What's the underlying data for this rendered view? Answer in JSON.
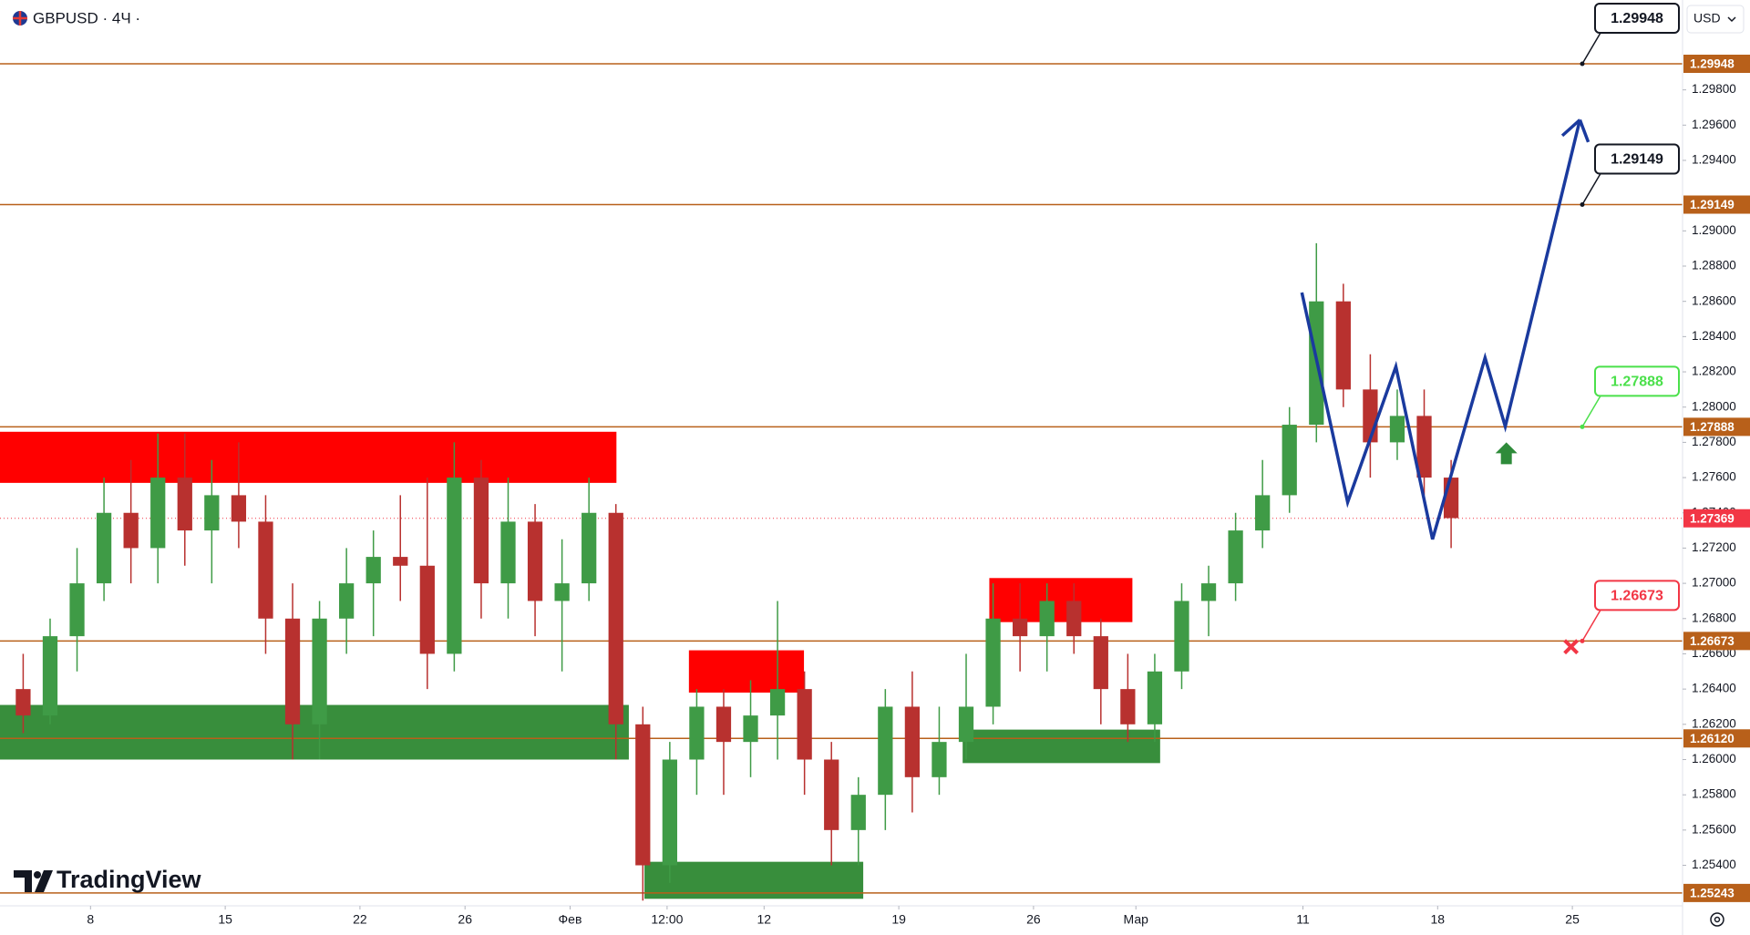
{
  "header": {
    "symbol": "GBPUSD · 4Ч ·",
    "currency": "USD",
    "brand": "TradingView"
  },
  "chart_data": {
    "type": "candlestick",
    "up_color": "#3f9b46",
    "down_color": "#b8312f",
    "xlim": [
      -3.36,
      59.09
    ],
    "ylim": [
      1.2517,
      1.3031
    ],
    "xticks": [
      {
        "value": 0,
        "label": "8"
      },
      {
        "value": 5,
        "label": "15"
      },
      {
        "value": 10,
        "label": "22"
      },
      {
        "value": 13.9,
        "label": "26"
      },
      {
        "value": 17.8,
        "label": "Фев"
      },
      {
        "value": 21.4,
        "label": "12:00"
      },
      {
        "value": 25,
        "label": "12"
      },
      {
        "value": 30,
        "label": "19"
      },
      {
        "value": 35,
        "label": "26"
      },
      {
        "value": 38.8,
        "label": "Мар"
      },
      {
        "value": 45,
        "label": "11"
      },
      {
        "value": 50,
        "label": "18"
      },
      {
        "value": 55,
        "label": "25"
      }
    ],
    "yticks": [
      {
        "value": 1.254,
        "label": "1.25400"
      },
      {
        "value": 1.256,
        "label": "1.25600"
      },
      {
        "value": 1.258,
        "label": "1.25800"
      },
      {
        "value": 1.26,
        "label": "1.26000"
      },
      {
        "value": 1.262,
        "label": "1.26200"
      },
      {
        "value": 1.264,
        "label": "1.26400"
      },
      {
        "value": 1.266,
        "label": "1.26600"
      },
      {
        "value": 1.268,
        "label": "1.26800"
      },
      {
        "value": 1.27,
        "label": "1.27000"
      },
      {
        "value": 1.272,
        "label": "1.27200"
      },
      {
        "value": 1.274,
        "label": "1.27400"
      },
      {
        "value": 1.276,
        "label": "1.27600"
      },
      {
        "value": 1.278,
        "label": "1.27800"
      },
      {
        "value": 1.28,
        "label": "1.28000"
      },
      {
        "value": 1.282,
        "label": "1.28200"
      },
      {
        "value": 1.284,
        "label": "1.28400"
      },
      {
        "value": 1.286,
        "label": "1.28600"
      },
      {
        "value": 1.288,
        "label": "1.28800"
      },
      {
        "value": 1.29,
        "label": "1.29000"
      },
      {
        "value": 1.294,
        "label": "1.29400"
      },
      {
        "value": 1.296,
        "label": "1.29600"
      },
      {
        "value": 1.298,
        "label": "1.29800"
      }
    ],
    "x": [
      -2.5,
      -1.5,
      -0.5,
      0.5,
      1.5,
      2.5,
      3.5,
      4.5,
      5.5,
      6.5,
      7.5,
      8.5,
      9.5,
      10.5,
      11.5,
      12.5,
      13.5,
      14.5,
      15.5,
      16.5,
      17.5,
      18.5,
      19.5,
      20.5,
      21.5,
      22.5,
      23.5,
      24.5,
      25.5,
      26.5,
      27.5,
      28.5,
      29.5,
      30.5,
      31.5,
      32.5,
      33.5,
      34.5,
      35.5,
      36.5,
      37.5,
      38.5,
      39.5,
      40.5,
      41.5,
      42.5,
      43.5,
      44.5,
      45.5,
      46.5,
      47.5,
      48.5,
      49.5,
      50.5
    ],
    "open": [
      1.264,
      1.2625,
      1.267,
      1.27,
      1.274,
      1.272,
      1.276,
      1.273,
      1.275,
      1.2735,
      1.268,
      1.262,
      1.268,
      1.27,
      1.2715,
      1.271,
      1.266,
      1.276,
      1.27,
      1.2735,
      1.269,
      1.27,
      1.274,
      1.262,
      1.254,
      1.26,
      1.263,
      1.261,
      1.2625,
      1.264,
      1.26,
      1.256,
      1.258,
      1.263,
      1.259,
      1.261,
      1.263,
      1.268,
      1.267,
      1.269,
      1.267,
      1.264,
      1.262,
      1.265,
      1.269,
      1.27,
      1.273,
      1.275,
      1.279,
      1.286,
      1.281,
      1.278,
      1.2795,
      1.276
    ],
    "high": [
      1.266,
      1.268,
      1.272,
      1.276,
      1.277,
      1.2785,
      1.2785,
      1.277,
      1.278,
      1.275,
      1.27,
      1.269,
      1.272,
      1.273,
      1.275,
      1.276,
      1.278,
      1.277,
      1.276,
      1.2745,
      1.2725,
      1.276,
      1.2745,
      1.263,
      1.261,
      1.264,
      1.264,
      1.2645,
      1.269,
      1.265,
      1.261,
      1.259,
      1.264,
      1.265,
      1.263,
      1.266,
      1.27,
      1.27,
      1.27,
      1.27,
      1.268,
      1.266,
      1.266,
      1.27,
      1.271,
      1.274,
      1.277,
      1.28,
      1.2893,
      1.287,
      1.283,
      1.281,
      1.281,
      1.277
    ],
    "low": [
      1.2615,
      1.262,
      1.265,
      1.269,
      1.27,
      1.27,
      1.271,
      1.27,
      1.272,
      1.266,
      1.26,
      1.26,
      1.266,
      1.267,
      1.269,
      1.264,
      1.265,
      1.268,
      1.268,
      1.267,
      1.265,
      1.269,
      1.26,
      1.252,
      1.253,
      1.258,
      1.258,
      1.259,
      1.26,
      1.258,
      1.254,
      1.254,
      1.256,
      1.257,
      1.258,
      1.26,
      1.262,
      1.265,
      1.265,
      1.266,
      1.262,
      1.261,
      1.261,
      1.264,
      1.267,
      1.269,
      1.272,
      1.274,
      1.278,
      1.28,
      1.276,
      1.277,
      1.275,
      1.272
    ],
    "close": [
      1.2625,
      1.267,
      1.27,
      1.274,
      1.272,
      1.276,
      1.273,
      1.275,
      1.2735,
      1.268,
      1.262,
      1.268,
      1.27,
      1.2715,
      1.271,
      1.266,
      1.276,
      1.27,
      1.2735,
      1.269,
      1.27,
      1.274,
      1.262,
      1.254,
      1.26,
      1.263,
      1.261,
      1.2625,
      1.264,
      1.26,
      1.256,
      1.258,
      1.263,
      1.259,
      1.261,
      1.263,
      1.268,
      1.267,
      1.269,
      1.267,
      1.264,
      1.262,
      1.265,
      1.269,
      1.27,
      1.273,
      1.275,
      1.279,
      1.286,
      1.281,
      1.278,
      1.2795,
      1.276,
      1.2737
    ],
    "level_color": "#b8601a",
    "levels": [
      {
        "value": 1.29948,
        "label": "1.29948",
        "callout": "#131722"
      },
      {
        "value": 1.29149,
        "label": "1.29149",
        "callout": "#131722"
      },
      {
        "value": 1.27888,
        "label": "1.27888",
        "callout": "#4be04b"
      },
      {
        "value": 1.26673,
        "label": "1.26673",
        "callout": "#f23645"
      },
      {
        "value": 1.2612,
        "label": "1.26120"
      },
      {
        "value": 1.25243,
        "label": "1.25243"
      }
    ],
    "last_price": {
      "value": 1.27369,
      "label": "1.27369",
      "color": "#f23645"
    },
    "zones": [
      {
        "x0": -3.36,
        "x1": 19.52,
        "y0": 1.2757,
        "y1": 1.2786,
        "color": "#ff0000"
      },
      {
        "x0": 22.21,
        "x1": 26.48,
        "y0": 1.2638,
        "y1": 1.2662,
        "color": "#ff0000"
      },
      {
        "x0": 33.36,
        "x1": 38.67,
        "y0": 1.2678,
        "y1": 1.2703,
        "color": "#ff0000"
      },
      {
        "x0": -3.36,
        "x1": 19.98,
        "y0": 1.26,
        "y1": 1.2631,
        "color": "#388e3c"
      },
      {
        "x0": 20.56,
        "x1": 28.68,
        "y0": 1.2521,
        "y1": 1.2542,
        "color": "#388e3c"
      },
      {
        "x0": 32.37,
        "x1": 39.7,
        "y0": 1.2598,
        "y1": 1.2617,
        "color": "#388e3c"
      }
    ],
    "projection": {
      "color": "#1a3a9e",
      "x": [
        44.96,
        46.66,
        48.45,
        49.81,
        51.76,
        52.51,
        55.28
      ],
      "y": [
        1.2865,
        1.2746,
        1.2823,
        1.2725,
        1.2828,
        1.2789,
        1.2963
      ]
    },
    "buy_signal": {
      "x": 52.55,
      "y": 1.278,
      "color": "#2e8b3a"
    },
    "stop_signal": {
      "x": 54.95,
      "y": 1.2664,
      "color": "#f23645"
    }
  }
}
